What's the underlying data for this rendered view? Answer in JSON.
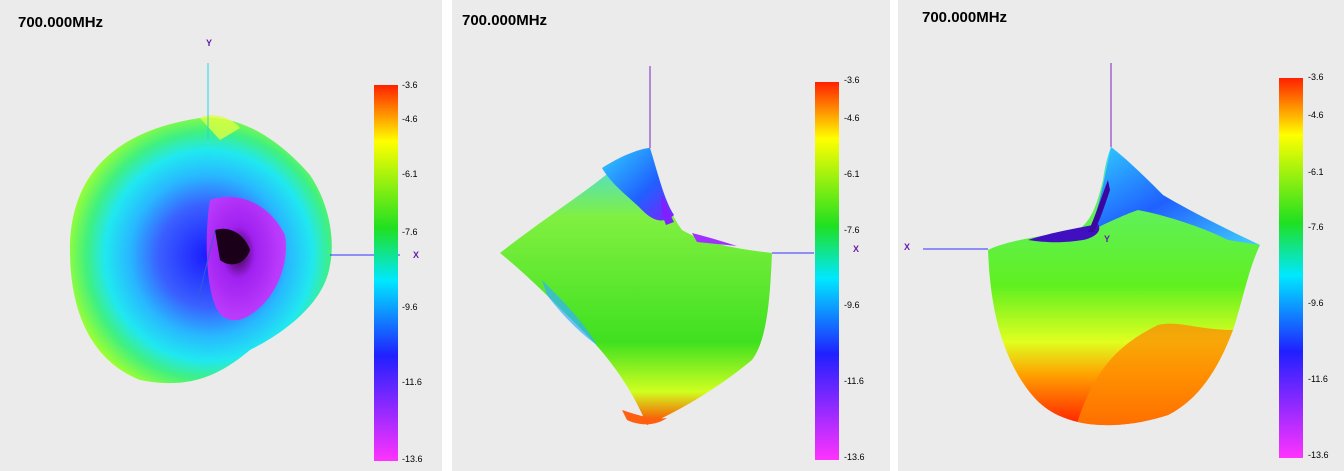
{
  "chart_data": [
    {
      "type": "heatmap",
      "title": "700.000MHz",
      "color_scale": {
        "ticks": [
          "-3.6",
          "-4.6",
          "-6.1",
          "-7.6",
          "-9.6",
          "-11.6",
          "-13.6"
        ],
        "range": [
          -13.6,
          -3.6
        ],
        "colors": [
          "#ff33ff",
          "#2020ff",
          "#00c8ff",
          "#20e020",
          "#ffff00",
          "#ff2000"
        ]
      },
      "axes": [
        "Y",
        "X"
      ]
    },
    {
      "type": "heatmap",
      "title": "700.000MHz",
      "color_scale": {
        "ticks": [
          "-3.6",
          "-4.6",
          "-6.1",
          "-7.6",
          "-9.6",
          "-11.6",
          "-13.6"
        ],
        "range": [
          -13.6,
          -3.6
        ],
        "colors": [
          "#ff33ff",
          "#2020ff",
          "#00c8ff",
          "#20e020",
          "#ffff00",
          "#ff2000"
        ]
      },
      "axes": [
        "X"
      ]
    },
    {
      "type": "heatmap",
      "title": "700.000MHz",
      "color_scale": {
        "ticks": [
          "-3.6",
          "-4.6",
          "-6.1",
          "-7.6",
          "-9.6",
          "-11.6",
          "-13.6"
        ],
        "range": [
          -13.6,
          -3.6
        ],
        "colors": [
          "#ff33ff",
          "#2020ff",
          "#00c8ff",
          "#20e020",
          "#ffff00",
          "#ff2000"
        ]
      },
      "axes": [
        "X",
        "Y"
      ]
    }
  ]
}
